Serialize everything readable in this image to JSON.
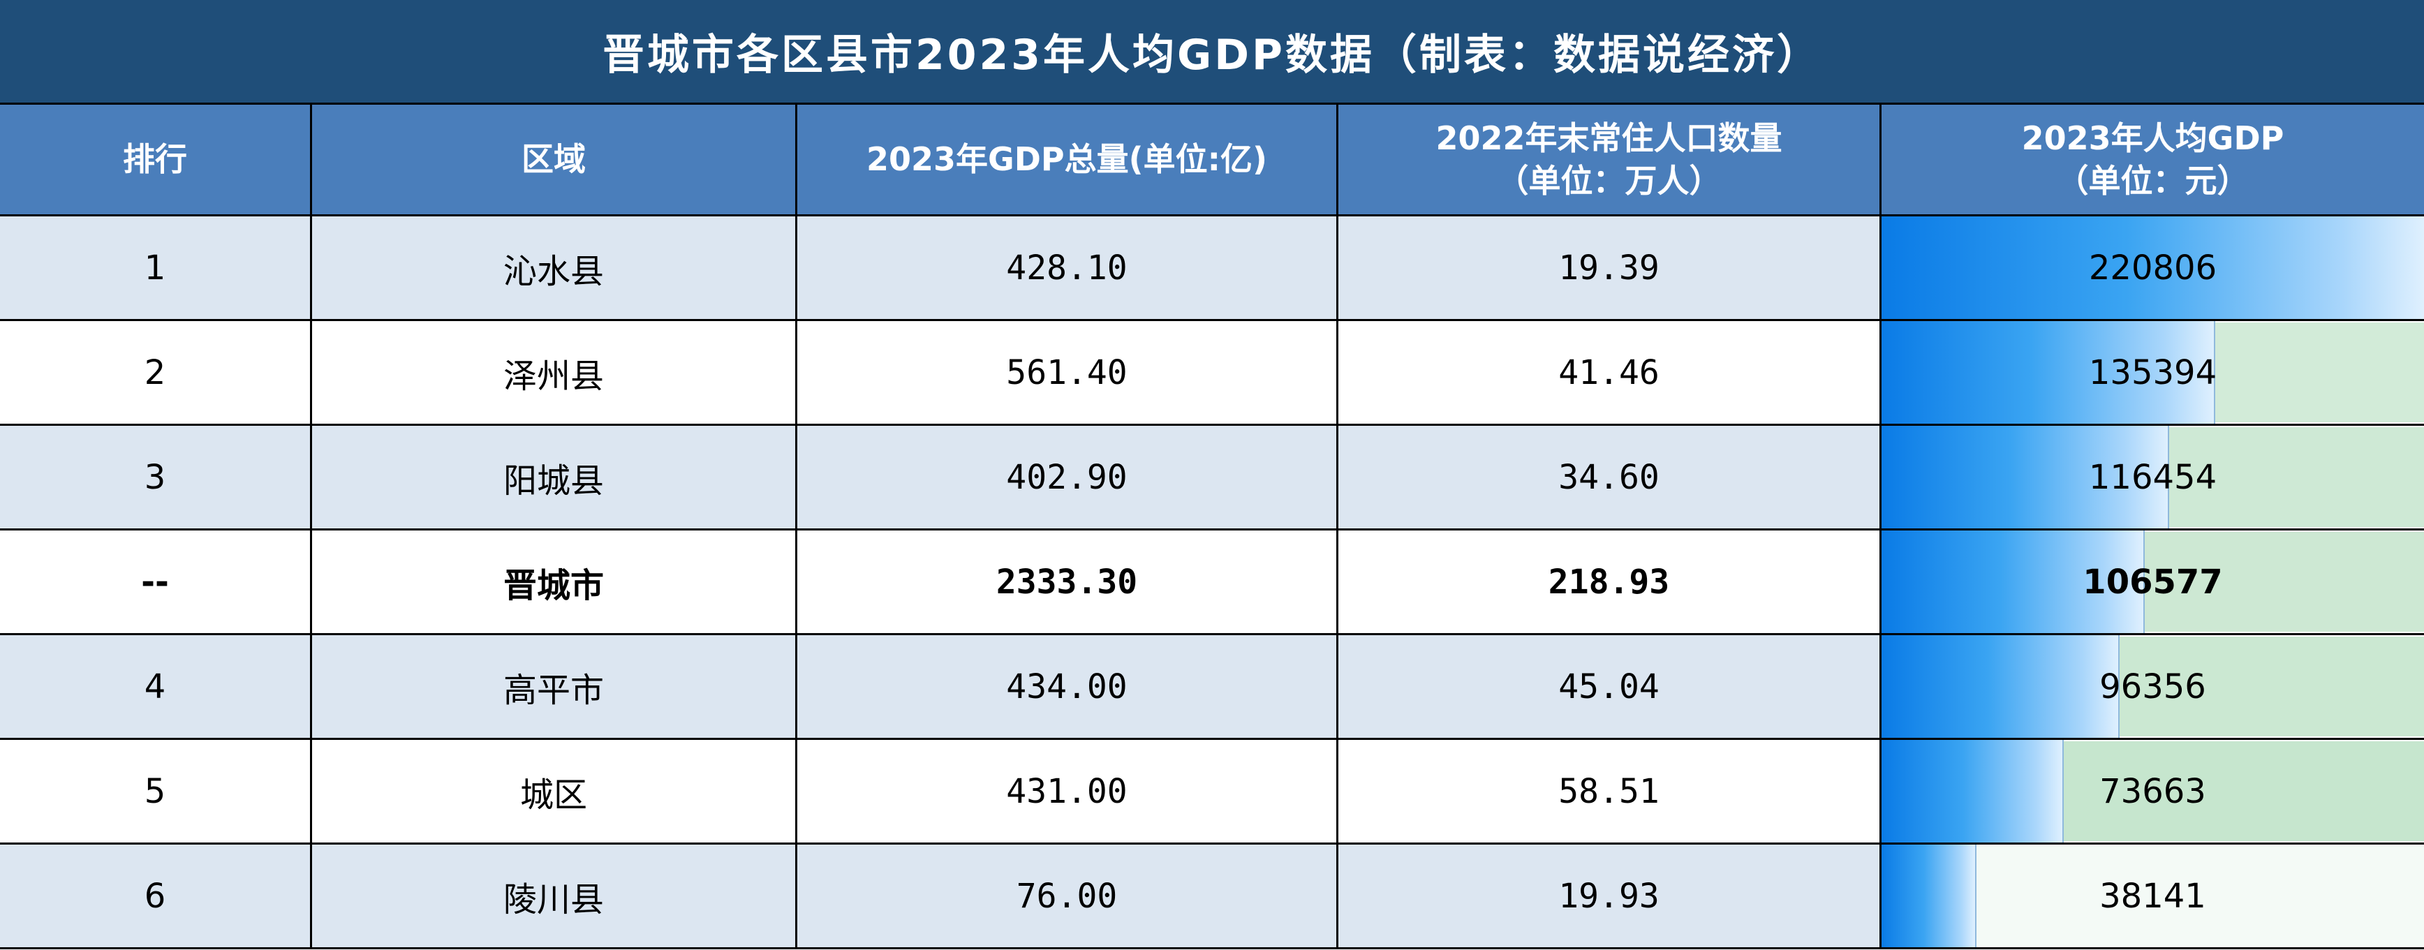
{
  "chart_data": {
    "type": "table",
    "title": "晋城市各区县市2023年人均GDP数据（制表：数据说经济）",
    "columns": [
      "排行",
      "区域",
      "2023年GDP总量(单位:亿)",
      "2022年末常住人口数量（单位：万人）",
      "2023年人均GDP（单位：元）"
    ],
    "header": {
      "rank": "排行",
      "region": "区域",
      "gdp": "2023年GDP总量(单位:亿)",
      "pop_line1": "2022年末常住人口数量",
      "pop_line2": "（单位：万人）",
      "pcgdp_line1": "2023年人均GDP",
      "pcgdp_line2": "（单位：元）"
    },
    "rows": [
      {
        "rank": "1",
        "region": "沁水县",
        "gdp": "428.10",
        "population": "19.39",
        "per_capita_gdp": 220806,
        "bold": false
      },
      {
        "rank": "2",
        "region": "泽州县",
        "gdp": "561.40",
        "population": "41.46",
        "per_capita_gdp": 135394,
        "bold": false
      },
      {
        "rank": "3",
        "region": "阳城县",
        "gdp": "402.90",
        "population": "34.60",
        "per_capita_gdp": 116454,
        "bold": false
      },
      {
        "rank": "--",
        "region": "晋城市",
        "gdp": "2333.30",
        "population": "218.93",
        "per_capita_gdp": 106577,
        "bold": true
      },
      {
        "rank": "4",
        "region": "高平市",
        "gdp": "434.00",
        "population": "45.04",
        "per_capita_gdp": 96356,
        "bold": false
      },
      {
        "rank": "5",
        "region": "城区",
        "gdp": "431.00",
        "population": "58.51",
        "per_capita_gdp": 73663,
        "bold": false
      },
      {
        "rank": "6",
        "region": "陵川县",
        "gdp": "76.00",
        "population": "19.93",
        "per_capita_gdp": 38141,
        "bold": false
      }
    ],
    "bar_column": "per_capita_gdp",
    "bar_max": 220806,
    "colors": {
      "title_bg": "#1f4e79",
      "header_bg": "#4a7ebb",
      "row_alt_bg": "#dce6f1",
      "bar_start": "#0a7be6",
      "bar_end": "#dff0fe",
      "bar_track": "#c6e6cf"
    }
  }
}
